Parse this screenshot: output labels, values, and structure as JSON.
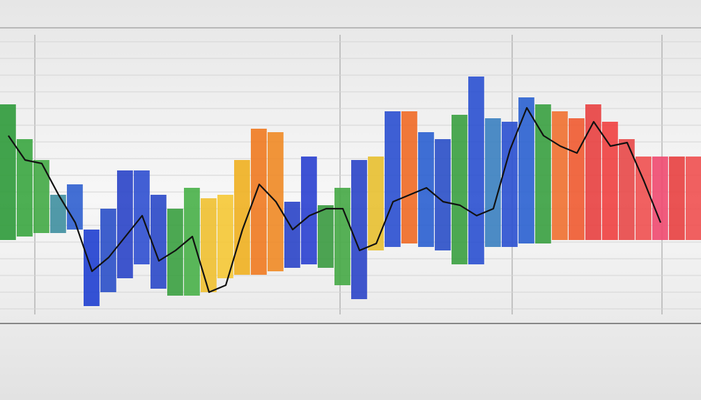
{
  "chart_data": {
    "type": "bar",
    "ylim": [
      0,
      41
    ],
    "grid": true,
    "values": [
      30,
      25,
      22,
      17,
      18.5,
      12,
      15,
      20.5,
      20.5,
      17,
      15,
      18,
      16.5,
      17,
      22,
      26.5,
      26,
      16,
      22.5,
      15.5,
      18,
      22,
      22.5,
      29,
      29,
      26,
      25,
      28.5,
      34,
      28,
      27.5,
      31,
      30,
      29,
      28,
      30,
      27.5,
      25,
      22.5,
      22.5,
      22.5,
      22.5
    ],
    "lows": [
      10.5,
      11,
      11.5,
      11.5,
      12,
      1,
      3,
      5,
      7,
      3.5,
      2.5,
      2.5,
      3,
      5,
      5.5,
      5.5,
      6,
      6.5,
      7,
      6.5,
      4,
      2,
      9,
      9.5,
      10,
      9.5,
      9,
      7,
      7,
      9.5,
      9.5,
      10,
      10,
      10.5,
      10.5,
      10.5,
      10.5,
      10.5,
      10.5,
      10.5,
      10.5,
      10.5
    ],
    "colors": [
      "#2e9a3a",
      "#3aa640",
      "#42aa45",
      "#3f8fa0",
      "#2f5fcf",
      "#1f3fd0",
      "#2a4fc8",
      "#2a44c8",
      "#2f4fd0",
      "#2a48c8",
      "#3aa040",
      "#48b048",
      "#f0c030",
      "#f5c835",
      "#f0b020",
      "#f07a20",
      "#f08a25",
      "#2a44c8",
      "#2a40d0",
      "#3a9a40",
      "#45a845",
      "#2a44c8",
      "#e8c030",
      "#2a4fd0",
      "#f06a25",
      "#2a5fd0",
      "#2a4fc8",
      "#3aa040",
      "#2a50d0",
      "#3a7fc0",
      "#2a50d0",
      "#2a60d0",
      "#38a040",
      "#f07030",
      "#f05a30",
      "#e84040",
      "#f04040",
      "#e84848",
      "#f05050",
      "#f04a70",
      "#e84040",
      "#f05050"
    ],
    "line": [
      25.5,
      22,
      21.5,
      17,
      13,
      6,
      8,
      11,
      14,
      7.5,
      9,
      11,
      3,
      4,
      12,
      18.5,
      16,
      12,
      14,
      15,
      15,
      9,
      10,
      16,
      17,
      18,
      16,
      15.5,
      14,
      15,
      23.5,
      29.5,
      25.5,
      24,
      23,
      27.5,
      24,
      24.5,
      19,
      13,
      null,
      null
    ]
  }
}
